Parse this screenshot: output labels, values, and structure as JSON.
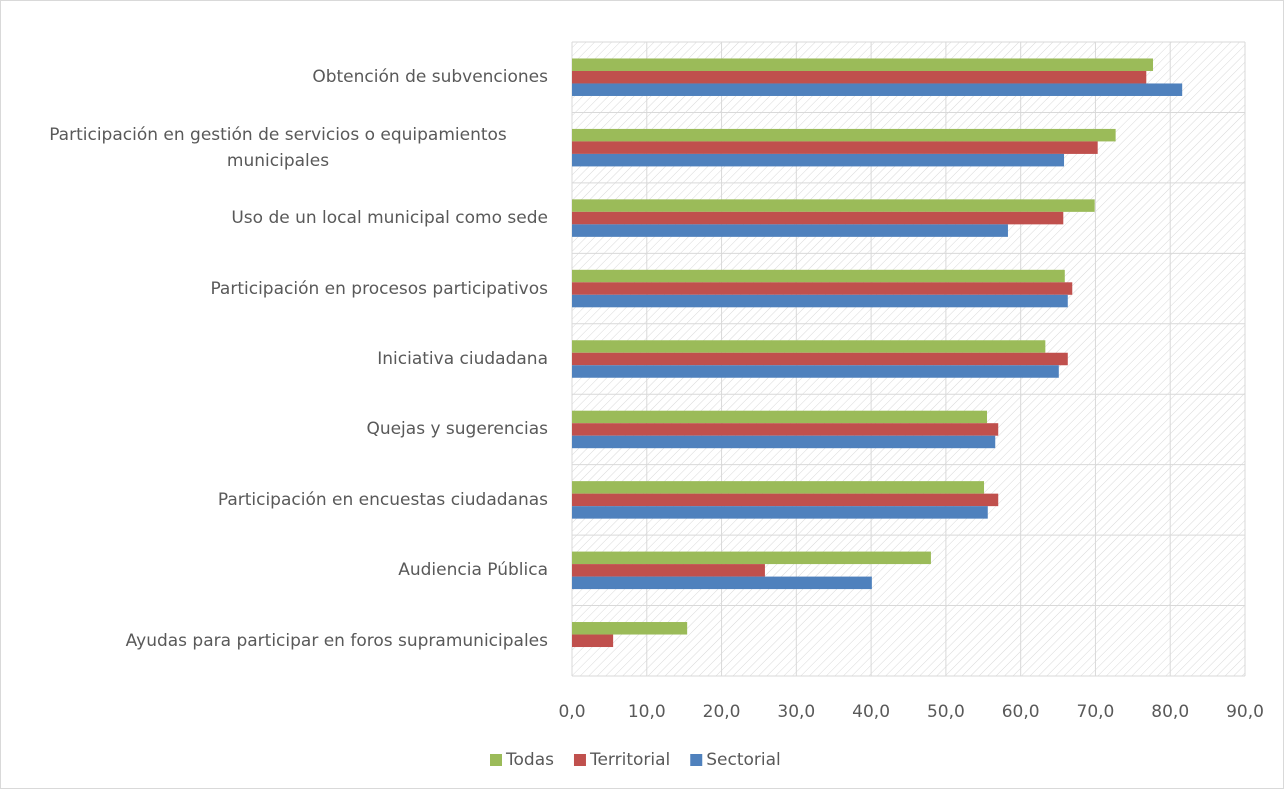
{
  "chart_data": {
    "type": "bar",
    "orientation": "horizontal",
    "categories": [
      "Obtención de subvenciones",
      "Participación en gestión de servicios o equipamientos municipales",
      "Uso de un local municipal como sede",
      "Participación en procesos participativos",
      "Iniciativa ciudadana",
      "Quejas y sugerencias",
      "Participación en encuestas ciudadanas",
      "Audiencia Pública",
      "Ayudas para participar en foros supramunicipales"
    ],
    "series": [
      {
        "name": "Todas",
        "color": "#9bbb59",
        "values": [
          77.7,
          72.7,
          69.9,
          65.9,
          63.3,
          55.5,
          55.1,
          48.0,
          15.4
        ]
      },
      {
        "name": "Territorial",
        "color": "#c0504d",
        "values": [
          76.8,
          70.3,
          65.7,
          66.9,
          66.3,
          57.0,
          57.0,
          25.8,
          5.5
        ]
      },
      {
        "name": "Sectorial",
        "color": "#4f81bd",
        "values": [
          81.6,
          65.8,
          58.3,
          66.3,
          65.1,
          56.6,
          55.6,
          40.1,
          0
        ]
      }
    ],
    "xlim": [
      0,
      90
    ],
    "xticks": [
      {
        "value": 0,
        "label": "0,0"
      },
      {
        "value": 10,
        "label": "10,0"
      },
      {
        "value": 20,
        "label": "20,0"
      },
      {
        "value": 30,
        "label": "30,0"
      },
      {
        "value": 40,
        "label": "40,0"
      },
      {
        "value": 50,
        "label": "50,0"
      },
      {
        "value": 60,
        "label": "60,0"
      },
      {
        "value": 70,
        "label": "70,0"
      },
      {
        "value": 80,
        "label": "80,0"
      },
      {
        "value": 90,
        "label": "90,0"
      }
    ],
    "grid": true,
    "legend": "bottom"
  }
}
